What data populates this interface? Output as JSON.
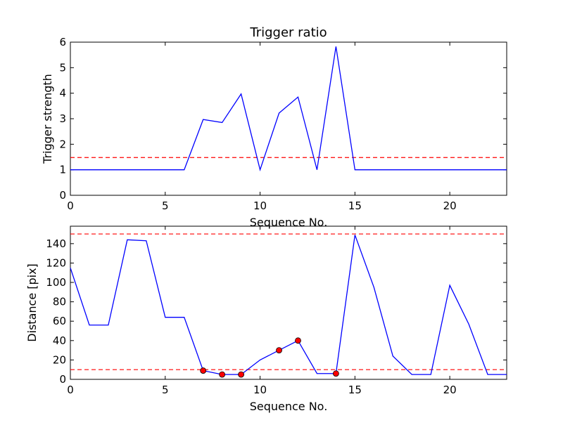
{
  "chart_data": [
    {
      "type": "line",
      "title": "Trigger ratio",
      "xlabel": "Sequence No.",
      "ylabel": "Trigger strength",
      "xlim": [
        0,
        23
      ],
      "ylim": [
        0,
        6
      ],
      "xticks": [
        0,
        5,
        10,
        15,
        20
      ],
      "yticks": [
        0,
        1,
        2,
        3,
        4,
        5,
        6
      ],
      "grid": false,
      "series": [
        {
          "color": "#0000ff",
          "x": [
            0,
            1,
            2,
            3,
            4,
            5,
            6,
            7,
            8,
            9,
            10,
            11,
            12,
            13,
            14,
            15,
            16,
            17,
            18,
            19,
            20,
            21,
            22,
            23
          ],
          "y": [
            1,
            1,
            1,
            1,
            1,
            1,
            1,
            2.97,
            2.85,
            3.97,
            1,
            3.22,
            3.85,
            1,
            5.83,
            1,
            1,
            1,
            1,
            1,
            1,
            1,
            1,
            1
          ]
        }
      ],
      "hlines": [
        {
          "y": 1.48,
          "color": "#ff0000",
          "style": "dashed"
        }
      ]
    },
    {
      "type": "line",
      "title": "",
      "xlabel": "Sequence No.",
      "ylabel": "Distance [pix]",
      "xlim": [
        0,
        23
      ],
      "ylim": [
        0,
        158
      ],
      "xticks": [
        0,
        5,
        10,
        15,
        20
      ],
      "yticks": [
        0,
        20,
        40,
        60,
        80,
        100,
        120,
        140
      ],
      "grid": false,
      "series": [
        {
          "color": "#0000ff",
          "x": [
            0,
            1,
            2,
            3,
            4,
            5,
            6,
            7,
            8,
            9,
            10,
            11,
            12,
            13,
            14,
            15,
            16,
            17,
            18,
            19,
            20,
            21,
            22,
            23
          ],
          "y": [
            115,
            56,
            56,
            144,
            143,
            64,
            64,
            9,
            5,
            5,
            20,
            30,
            40,
            6,
            6,
            149,
            95,
            24,
            5,
            5,
            97,
            57,
            5,
            5
          ]
        }
      ],
      "markers": {
        "color": "#ff0000",
        "x": [
          7,
          8,
          9,
          11,
          12,
          14
        ],
        "y": [
          9,
          5,
          5,
          30,
          40,
          6
        ]
      },
      "hlines": [
        {
          "y": 150,
          "color": "#ff0000",
          "style": "dashed"
        },
        {
          "y": 10,
          "color": "#ff0000",
          "style": "dashed"
        }
      ]
    }
  ]
}
